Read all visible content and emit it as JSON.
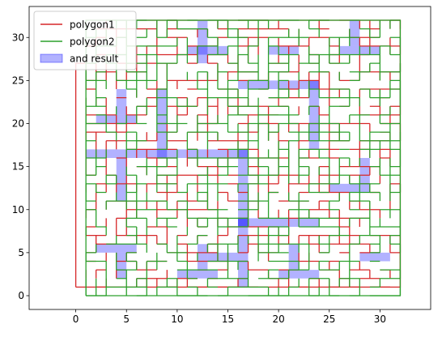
{
  "chart_data": {
    "type": "line",
    "title": "",
    "xlabel": "",
    "ylabel": "",
    "xlim": [
      -4.6,
      35.0
    ],
    "ylim": [
      -1.6,
      33.6
    ],
    "x_ticks": [
      0,
      5,
      10,
      15,
      20,
      25,
      30
    ],
    "y_ticks": [
      0,
      5,
      10,
      15,
      20,
      25,
      30
    ],
    "grid": false,
    "legend_position": "top-left",
    "description_hidden": true,
    "series": [
      {
        "name": "polygon1",
        "kind": "outline",
        "color": "#d62728",
        "frame": [
          [
            0,
            1
          ],
          [
            0,
            27
          ],
          [
            1,
            27
          ],
          [
            1,
            32
          ],
          [
            32,
            32
          ],
          [
            32,
            1
          ],
          [
            0,
            1
          ]
        ]
      },
      {
        "name": "polygon2",
        "kind": "outline",
        "color": "#2ca02c",
        "frame": [
          [
            1,
            0
          ],
          [
            32,
            0
          ],
          [
            32,
            32
          ],
          [
            1,
            32
          ],
          [
            1,
            0
          ]
        ]
      },
      {
        "name": "and result",
        "kind": "fill",
        "color": "#0000ff",
        "fill_alpha": 0.3,
        "regions": [
          {
            "x": 8,
            "y": 16,
            "w": 9,
            "h": 1
          },
          {
            "x": 1,
            "y": 16,
            "w": 8,
            "h": 1
          },
          {
            "x": 16,
            "y": 8,
            "w": 1,
            "h": 9
          },
          {
            "x": 16,
            "y": 8,
            "w": 8,
            "h": 1
          },
          {
            "x": 16,
            "y": 24,
            "w": 8,
            "h": 1
          },
          {
            "x": 23,
            "y": 17,
            "w": 1,
            "h": 8
          },
          {
            "x": 8,
            "y": 17,
            "w": 1,
            "h": 7
          },
          {
            "x": 16,
            "y": 1,
            "w": 1,
            "h": 8
          },
          {
            "x": 2,
            "y": 5,
            "w": 4,
            "h": 1
          },
          {
            "x": 4,
            "y": 2,
            "w": 1,
            "h": 3
          },
          {
            "x": 4,
            "y": 11,
            "w": 1,
            "h": 5
          },
          {
            "x": 10,
            "y": 2,
            "w": 4,
            "h": 1
          },
          {
            "x": 12,
            "y": 3,
            "w": 1,
            "h": 3
          },
          {
            "x": 13,
            "y": 4,
            "w": 3,
            "h": 1
          },
          {
            "x": 2,
            "y": 20,
            "w": 4,
            "h": 1
          },
          {
            "x": 4,
            "y": 21,
            "w": 1,
            "h": 3
          },
          {
            "x": 11,
            "y": 28,
            "w": 4,
            "h": 1
          },
          {
            "x": 12,
            "y": 27,
            "w": 1,
            "h": 5
          },
          {
            "x": 25,
            "y": 12,
            "w": 4,
            "h": 1
          },
          {
            "x": 28,
            "y": 13,
            "w": 1,
            "h": 3
          },
          {
            "x": 26,
            "y": 28,
            "w": 4,
            "h": 1
          },
          {
            "x": 27,
            "y": 29,
            "w": 1,
            "h": 3
          },
          {
            "x": 20,
            "y": 2,
            "w": 4,
            "h": 1
          },
          {
            "x": 21,
            "y": 3,
            "w": 1,
            "h": 3
          },
          {
            "x": 28,
            "y": 4,
            "w": 3,
            "h": 1
          },
          {
            "x": 19,
            "y": 28,
            "w": 3,
            "h": 1
          }
        ]
      }
    ]
  }
}
